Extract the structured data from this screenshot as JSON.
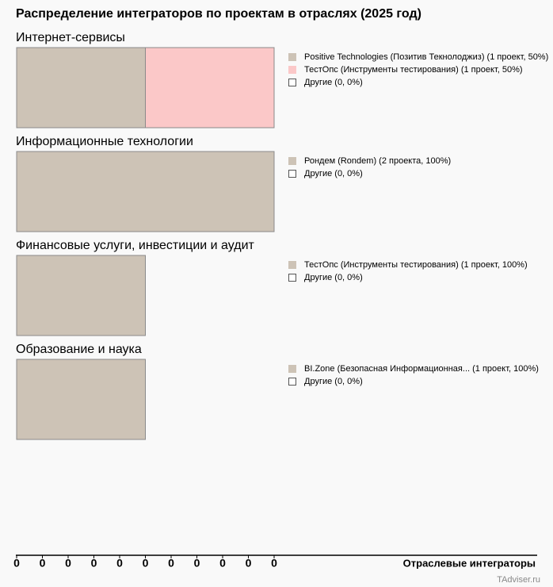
{
  "chart_data": {
    "type": "stacked-bar",
    "title": "Распределение интеграторов по проектам в отраслях (2025 год)",
    "xlabel": "Отраслевые интеграторы",
    "source": "TAdviser.ru",
    "xlim": [
      0,
      2
    ],
    "xticks": [
      0,
      {
        "value": 0.2,
        "label": "0"
      },
      {
        "value": 0.4,
        "label": "0"
      },
      {
        "value": 0.6,
        "label": "0"
      },
      {
        "value": 0.8,
        "label": "0"
      },
      {
        "value": 1,
        "label": "0"
      },
      {
        "value": 1.2,
        "label": "0"
      },
      {
        "value": 1.4,
        "label": "0"
      },
      {
        "value": 1.6,
        "label": "0"
      },
      {
        "value": 1.8,
        "label": "0"
      },
      {
        "value": 2,
        "label": "0"
      }
    ],
    "groups": [
      {
        "name": "Интернет-сервисы",
        "series": [
          {
            "name": "Positive Technologies (Позитив Текнолоджиз) (1 проект, 50%)",
            "color": "#cdc3b6",
            "value": 1
          },
          {
            "name": "ТестОпс (Инструменты тестирования) (1 проект, 50%)",
            "color": "#fbc8c8",
            "value": 1
          },
          {
            "name": "Другие (0, 0%)",
            "color": "#ffffff",
            "value": 0
          }
        ]
      },
      {
        "name": "Информационные технологии",
        "series": [
          {
            "name": "Рондем (Rondem) (2 проекта, 100%)",
            "color": "#cdc3b6",
            "value": 2
          },
          {
            "name": "Другие (0, 0%)",
            "color": "#ffffff",
            "value": 0
          }
        ]
      },
      {
        "name": "Финансовые услуги, инвестиции и аудит",
        "series": [
          {
            "name": "ТестОпс (Инструменты тестирования) (1 проект, 100%)",
            "color": "#cdc3b6",
            "value": 1
          },
          {
            "name": "Другие (0, 0%)",
            "color": "#ffffff",
            "value": 0
          }
        ]
      },
      {
        "name": "Образование и наука",
        "series": [
          {
            "name": "BI.Zone (Безопасная Информационная... (1 проект, 100%)",
            "color": "#cdc3b6",
            "value": 1
          },
          {
            "name": "Другие (0, 0%)",
            "color": "#ffffff",
            "value": 0
          }
        ]
      }
    ]
  }
}
